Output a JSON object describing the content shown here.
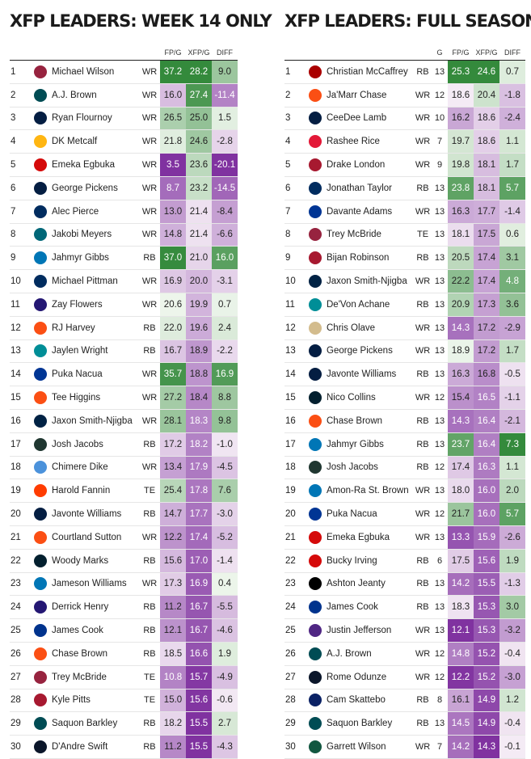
{
  "left": {
    "title": "XFP LEADERS: WEEK 14 ONLY",
    "headers": [
      "FP/G",
      "XFP/G",
      "DIFF"
    ],
    "rows": [
      {
        "rank": "1",
        "team": "ARI",
        "player": "Michael Wilson",
        "pos": "WR",
        "fpg": "37.2",
        "xfpg": "28.2",
        "diff": "9.0"
      },
      {
        "rank": "2",
        "team": "PHI",
        "player": "A.J. Brown",
        "pos": "WR",
        "fpg": "16.0",
        "xfpg": "27.4",
        "diff": "-11.4"
      },
      {
        "rank": "3",
        "team": "DAL",
        "player": "Ryan Flournoy",
        "pos": "WR",
        "fpg": "26.5",
        "xfpg": "25.0",
        "diff": "1.5"
      },
      {
        "rank": "4",
        "team": "PIT",
        "player": "DK Metcalf",
        "pos": "WR",
        "fpg": "21.8",
        "xfpg": "24.6",
        "diff": "-2.8"
      },
      {
        "rank": "5",
        "team": "TB",
        "player": "Emeka Egbuka",
        "pos": "WR",
        "fpg": "3.5",
        "xfpg": "23.6",
        "diff": "-20.1"
      },
      {
        "rank": "6",
        "team": "DAL",
        "player": "George Pickens",
        "pos": "WR",
        "fpg": "8.7",
        "xfpg": "23.2",
        "diff": "-14.5"
      },
      {
        "rank": "7",
        "team": "IND",
        "player": "Alec Pierce",
        "pos": "WR",
        "fpg": "13.0",
        "xfpg": "21.4",
        "diff": "-8.4"
      },
      {
        "rank": "8",
        "team": "JAX",
        "player": "Jakobi Meyers",
        "pos": "WR",
        "fpg": "14.8",
        "xfpg": "21.4",
        "diff": "-6.6"
      },
      {
        "rank": "9",
        "team": "DET",
        "player": "Jahmyr Gibbs",
        "pos": "RB",
        "fpg": "37.0",
        "xfpg": "21.0",
        "diff": "16.0"
      },
      {
        "rank": "10",
        "team": "IND",
        "player": "Michael Pittman",
        "pos": "WR",
        "fpg": "16.9",
        "xfpg": "20.0",
        "diff": "-3.1"
      },
      {
        "rank": "11",
        "team": "BAL",
        "player": "Zay Flowers",
        "pos": "WR",
        "fpg": "20.6",
        "xfpg": "19.9",
        "diff": "0.7"
      },
      {
        "rank": "12",
        "team": "DEN",
        "player": "RJ Harvey",
        "pos": "RB",
        "fpg": "22.0",
        "xfpg": "19.6",
        "diff": "2.4"
      },
      {
        "rank": "13",
        "team": "MIA",
        "player": "Jaylen Wright",
        "pos": "RB",
        "fpg": "16.7",
        "xfpg": "18.9",
        "diff": "-2.2"
      },
      {
        "rank": "14",
        "team": "LAR",
        "player": "Puka Nacua",
        "pos": "WR",
        "fpg": "35.7",
        "xfpg": "18.8",
        "diff": "16.9"
      },
      {
        "rank": "15",
        "team": "CIN",
        "player": "Tee Higgins",
        "pos": "WR",
        "fpg": "27.2",
        "xfpg": "18.4",
        "diff": "8.8"
      },
      {
        "rank": "16",
        "team": "SEA",
        "player": "Jaxon Smith-Njigba",
        "pos": "WR",
        "fpg": "28.1",
        "xfpg": "18.3",
        "diff": "9.8"
      },
      {
        "rank": "17",
        "team": "GB",
        "player": "Josh Jacobs",
        "pos": "RB",
        "fpg": "17.2",
        "xfpg": "18.2",
        "diff": "-1.0"
      },
      {
        "rank": "18",
        "team": "TEN",
        "player": "Chimere Dike",
        "pos": "WR",
        "fpg": "13.4",
        "xfpg": "17.9",
        "diff": "-4.5"
      },
      {
        "rank": "19",
        "team": "CLE",
        "player": "Harold Fannin",
        "pos": "TE",
        "fpg": "25.4",
        "xfpg": "17.8",
        "diff": "7.6"
      },
      {
        "rank": "20",
        "team": "DAL",
        "player": "Javonte Williams",
        "pos": "RB",
        "fpg": "14.7",
        "xfpg": "17.7",
        "diff": "-3.0"
      },
      {
        "rank": "21",
        "team": "DEN",
        "player": "Courtland Sutton",
        "pos": "WR",
        "fpg": "12.2",
        "xfpg": "17.4",
        "diff": "-5.2"
      },
      {
        "rank": "22",
        "team": "HOU",
        "player": "Woody Marks",
        "pos": "RB",
        "fpg": "15.6",
        "xfpg": "17.0",
        "diff": "-1.4"
      },
      {
        "rank": "23",
        "team": "DET",
        "player": "Jameson Williams",
        "pos": "WR",
        "fpg": "17.3",
        "xfpg": "16.9",
        "diff": "0.4"
      },
      {
        "rank": "24",
        "team": "BAL",
        "player": "Derrick Henry",
        "pos": "RB",
        "fpg": "11.2",
        "xfpg": "16.7",
        "diff": "-5.5"
      },
      {
        "rank": "25",
        "team": "BUF",
        "player": "James Cook",
        "pos": "RB",
        "fpg": "12.1",
        "xfpg": "16.7",
        "diff": "-4.6"
      },
      {
        "rank": "26",
        "team": "CIN",
        "player": "Chase Brown",
        "pos": "RB",
        "fpg": "18.5",
        "xfpg": "16.6",
        "diff": "1.9"
      },
      {
        "rank": "27",
        "team": "ARI",
        "player": "Trey McBride",
        "pos": "TE",
        "fpg": "10.8",
        "xfpg": "15.7",
        "diff": "-4.9"
      },
      {
        "rank": "28",
        "team": "ATL",
        "player": "Kyle Pitts",
        "pos": "TE",
        "fpg": "15.0",
        "xfpg": "15.6",
        "diff": "-0.6"
      },
      {
        "rank": "29",
        "team": "PHI",
        "player": "Saquon Barkley",
        "pos": "RB",
        "fpg": "18.2",
        "xfpg": "15.5",
        "diff": "2.7"
      },
      {
        "rank": "30",
        "team": "CHI",
        "player": "D'Andre Swift",
        "pos": "RB",
        "fpg": "11.2",
        "xfpg": "15.5",
        "diff": "-4.3"
      }
    ]
  },
  "right": {
    "title": "XFP LEADERS: FULL SEASON",
    "headers": [
      "G",
      "FP/G",
      "XFP/G",
      "DIFF"
    ],
    "rows": [
      {
        "rank": "1",
        "team": "SF",
        "player": "Christian McCaffrey",
        "pos": "RB",
        "g": "13",
        "fpg": "25.3",
        "xfpg": "24.6",
        "diff": "0.7"
      },
      {
        "rank": "2",
        "team": "CIN",
        "player": "Ja'Marr Chase",
        "pos": "WR",
        "g": "12",
        "fpg": "18.6",
        "xfpg": "20.4",
        "diff": "-1.8"
      },
      {
        "rank": "3",
        "team": "DAL",
        "player": "CeeDee Lamb",
        "pos": "WR",
        "g": "10",
        "fpg": "16.2",
        "xfpg": "18.6",
        "diff": "-2.4"
      },
      {
        "rank": "4",
        "team": "KC",
        "player": "Rashee Rice",
        "pos": "WR",
        "g": "7",
        "fpg": "19.7",
        "xfpg": "18.6",
        "diff": "1.1"
      },
      {
        "rank": "5",
        "team": "ATL",
        "player": "Drake London",
        "pos": "WR",
        "g": "9",
        "fpg": "19.8",
        "xfpg": "18.1",
        "diff": "1.7"
      },
      {
        "rank": "6",
        "team": "IND",
        "player": "Jonathan Taylor",
        "pos": "RB",
        "g": "13",
        "fpg": "23.8",
        "xfpg": "18.1",
        "diff": "5.7"
      },
      {
        "rank": "7",
        "team": "LAR",
        "player": "Davante Adams",
        "pos": "WR",
        "g": "13",
        "fpg": "16.3",
        "xfpg": "17.7",
        "diff": "-1.4"
      },
      {
        "rank": "8",
        "team": "ARI",
        "player": "Trey McBride",
        "pos": "TE",
        "g": "13",
        "fpg": "18.1",
        "xfpg": "17.5",
        "diff": "0.6"
      },
      {
        "rank": "9",
        "team": "ATL",
        "player": "Bijan Robinson",
        "pos": "RB",
        "g": "13",
        "fpg": "20.5",
        "xfpg": "17.4",
        "diff": "3.1"
      },
      {
        "rank": "10",
        "team": "SEA",
        "player": "Jaxon Smith-Njigba",
        "pos": "WR",
        "g": "13",
        "fpg": "22.2",
        "xfpg": "17.4",
        "diff": "4.8"
      },
      {
        "rank": "11",
        "team": "MIA",
        "player": "De'Von Achane",
        "pos": "RB",
        "g": "13",
        "fpg": "20.9",
        "xfpg": "17.3",
        "diff": "3.6"
      },
      {
        "rank": "12",
        "team": "NO",
        "player": "Chris Olave",
        "pos": "WR",
        "g": "13",
        "fpg": "14.3",
        "xfpg": "17.2",
        "diff": "-2.9"
      },
      {
        "rank": "13",
        "team": "DAL",
        "player": "George Pickens",
        "pos": "WR",
        "g": "13",
        "fpg": "18.9",
        "xfpg": "17.2",
        "diff": "1.7"
      },
      {
        "rank": "14",
        "team": "DAL",
        "player": "Javonte Williams",
        "pos": "RB",
        "g": "13",
        "fpg": "16.3",
        "xfpg": "16.8",
        "diff": "-0.5"
      },
      {
        "rank": "15",
        "team": "HOU",
        "player": "Nico Collins",
        "pos": "WR",
        "g": "12",
        "fpg": "15.4",
        "xfpg": "16.5",
        "diff": "-1.1"
      },
      {
        "rank": "16",
        "team": "CIN",
        "player": "Chase Brown",
        "pos": "RB",
        "g": "13",
        "fpg": "14.3",
        "xfpg": "16.4",
        "diff": "-2.1"
      },
      {
        "rank": "17",
        "team": "DET",
        "player": "Jahmyr Gibbs",
        "pos": "RB",
        "g": "13",
        "fpg": "23.7",
        "xfpg": "16.4",
        "diff": "7.3"
      },
      {
        "rank": "18",
        "team": "GB",
        "player": "Josh Jacobs",
        "pos": "RB",
        "g": "12",
        "fpg": "17.4",
        "xfpg": "16.3",
        "diff": "1.1"
      },
      {
        "rank": "19",
        "team": "DET",
        "player": "Amon-Ra St. Brown",
        "pos": "WR",
        "g": "13",
        "fpg": "18.0",
        "xfpg": "16.0",
        "diff": "2.0"
      },
      {
        "rank": "20",
        "team": "LAR",
        "player": "Puka Nacua",
        "pos": "WR",
        "g": "12",
        "fpg": "21.7",
        "xfpg": "16.0",
        "diff": "5.7"
      },
      {
        "rank": "21",
        "team": "TB",
        "player": "Emeka Egbuka",
        "pos": "WR",
        "g": "13",
        "fpg": "13.3",
        "xfpg": "15.9",
        "diff": "-2.6"
      },
      {
        "rank": "22",
        "team": "TB",
        "player": "Bucky Irving",
        "pos": "RB",
        "g": "6",
        "fpg": "17.5",
        "xfpg": "15.6",
        "diff": "1.9"
      },
      {
        "rank": "23",
        "team": "LV",
        "player": "Ashton Jeanty",
        "pos": "RB",
        "g": "13",
        "fpg": "14.2",
        "xfpg": "15.5",
        "diff": "-1.3"
      },
      {
        "rank": "24",
        "team": "BUF",
        "player": "James Cook",
        "pos": "RB",
        "g": "13",
        "fpg": "18.3",
        "xfpg": "15.3",
        "diff": "3.0"
      },
      {
        "rank": "25",
        "team": "MIN",
        "player": "Justin Jefferson",
        "pos": "WR",
        "g": "13",
        "fpg": "12.1",
        "xfpg": "15.3",
        "diff": "-3.2"
      },
      {
        "rank": "26",
        "team": "PHI",
        "player": "A.J. Brown",
        "pos": "WR",
        "g": "12",
        "fpg": "14.8",
        "xfpg": "15.2",
        "diff": "-0.4"
      },
      {
        "rank": "27",
        "team": "CHI",
        "player": "Rome Odunze",
        "pos": "WR",
        "g": "12",
        "fpg": "12.2",
        "xfpg": "15.2",
        "diff": "-3.0"
      },
      {
        "rank": "28",
        "team": "NYG",
        "player": "Cam Skattebo",
        "pos": "RB",
        "g": "8",
        "fpg": "16.1",
        "xfpg": "14.9",
        "diff": "1.2"
      },
      {
        "rank": "29",
        "team": "PHI",
        "player": "Saquon Barkley",
        "pos": "RB",
        "g": "13",
        "fpg": "14.5",
        "xfpg": "14.9",
        "diff": "-0.4"
      },
      {
        "rank": "30",
        "team": "NYJ",
        "player": "Garrett Wilson",
        "pos": "WR",
        "g": "7",
        "fpg": "14.2",
        "xfpg": "14.3",
        "diff": "-0.1"
      }
    ]
  },
  "team_colors": {
    "ARI": "#97233F",
    "PHI": "#004C54",
    "DAL": "#041E42",
    "PIT": "#FFB612",
    "TB": "#D50A0A",
    "IND": "#002C5F",
    "JAX": "#006778",
    "DET": "#0076B6",
    "BAL": "#241773",
    "DEN": "#FB4F14",
    "MIA": "#008E97",
    "LAR": "#003594",
    "CIN": "#FB4F14",
    "SEA": "#002244",
    "GB": "#203731",
    "TEN": "#4B92DB",
    "CLE": "#FF3C00",
    "HOU": "#03202F",
    "BUF": "#00338D",
    "ATL": "#A71930",
    "CHI": "#0B162A",
    "SF": "#AA0000",
    "KC": "#E31837",
    "NO": "#D3BC8D",
    "LV": "#000000",
    "MIN": "#4F2683",
    "NYG": "#0B2265",
    "NYJ": "#125740"
  }
}
